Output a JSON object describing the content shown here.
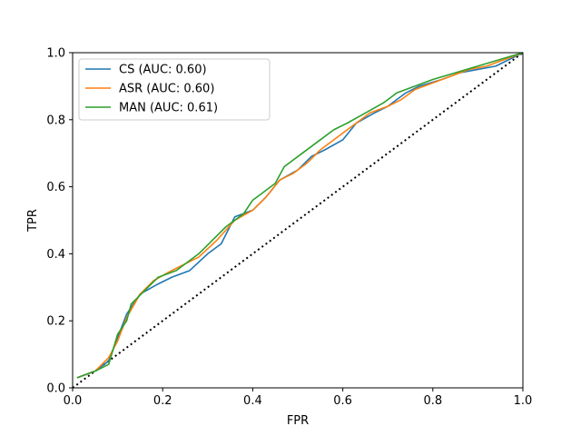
{
  "chart_data": {
    "type": "line",
    "title": "",
    "xlabel": "FPR",
    "ylabel": "TPR",
    "xlim": [
      0.0,
      1.0
    ],
    "ylim": [
      0.0,
      1.0
    ],
    "grid": false,
    "legend_position": "top-left",
    "x_ticks": [
      "0.0",
      "0.2",
      "0.4",
      "0.6",
      "0.8",
      "1.0"
    ],
    "y_ticks": [
      "0.0",
      "0.2",
      "0.4",
      "0.6",
      "0.8",
      "1.0"
    ],
    "reference_line": {
      "style": "dotted",
      "color": "#000000",
      "x": [
        0.0,
        1.0
      ],
      "y": [
        0.0,
        1.0
      ]
    },
    "series": [
      {
        "name": "CS (AUC: 0.60)",
        "color": "#1f77b4",
        "x": [
          0.01,
          0.05,
          0.08,
          0.1,
          0.12,
          0.15,
          0.19,
          0.22,
          0.26,
          0.3,
          0.33,
          0.36,
          0.4,
          0.43,
          0.46,
          0.5,
          0.53,
          0.56,
          0.6,
          0.63,
          0.67,
          0.7,
          0.74,
          0.77,
          0.82,
          0.86,
          0.9,
          0.94,
          0.97,
          1.0
        ],
        "y": [
          0.03,
          0.05,
          0.08,
          0.15,
          0.22,
          0.28,
          0.31,
          0.33,
          0.35,
          0.4,
          0.43,
          0.51,
          0.53,
          0.57,
          0.62,
          0.65,
          0.69,
          0.71,
          0.74,
          0.79,
          0.82,
          0.84,
          0.88,
          0.9,
          0.92,
          0.94,
          0.95,
          0.96,
          0.98,
          1.0
        ]
      },
      {
        "name": "ASR (AUC: 0.60)",
        "color": "#ff7f0e",
        "x": [
          0.01,
          0.05,
          0.08,
          0.1,
          0.12,
          0.15,
          0.18,
          0.22,
          0.25,
          0.28,
          0.32,
          0.36,
          0.4,
          0.43,
          0.46,
          0.49,
          0.52,
          0.55,
          0.59,
          0.63,
          0.66,
          0.7,
          0.73,
          0.76,
          0.8,
          0.84,
          0.88,
          0.92,
          0.96,
          1.0
        ],
        "y": [
          0.03,
          0.05,
          0.09,
          0.14,
          0.21,
          0.28,
          0.32,
          0.35,
          0.37,
          0.39,
          0.44,
          0.5,
          0.53,
          0.57,
          0.62,
          0.64,
          0.67,
          0.71,
          0.75,
          0.79,
          0.82,
          0.84,
          0.86,
          0.89,
          0.91,
          0.93,
          0.95,
          0.96,
          0.98,
          1.0
        ]
      },
      {
        "name": "MAN (AUC: 0.61)",
        "color": "#2ca02c",
        "x": [
          0.01,
          0.05,
          0.08,
          0.1,
          0.12,
          0.13,
          0.16,
          0.19,
          0.23,
          0.25,
          0.28,
          0.31,
          0.34,
          0.38,
          0.4,
          0.42,
          0.45,
          0.47,
          0.51,
          0.55,
          0.58,
          0.61,
          0.65,
          0.69,
          0.72,
          0.76,
          0.8,
          0.85,
          0.9,
          0.95,
          1.0
        ],
        "y": [
          0.03,
          0.05,
          0.07,
          0.16,
          0.2,
          0.25,
          0.29,
          0.33,
          0.35,
          0.37,
          0.4,
          0.44,
          0.48,
          0.52,
          0.56,
          0.58,
          0.61,
          0.66,
          0.7,
          0.74,
          0.77,
          0.79,
          0.82,
          0.85,
          0.88,
          0.9,
          0.92,
          0.94,
          0.96,
          0.98,
          1.0
        ]
      }
    ]
  }
}
